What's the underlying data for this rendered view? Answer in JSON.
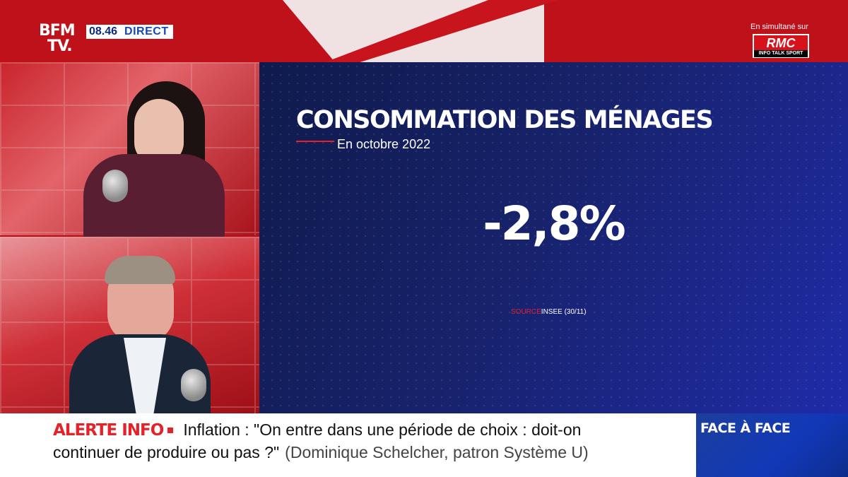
{
  "channel": {
    "logo_line1": "BFM",
    "logo_line2": "TV.",
    "time": "08.46",
    "live_label": "DIRECT"
  },
  "simulcast": {
    "label": "En simultané sur",
    "station": "RMC",
    "station_tagline": "INFO TALK SPORT"
  },
  "graphic": {
    "title": "CONSOMMATION DES MÉNAGES",
    "subtitle": "En octobre 2022",
    "value": "-2,8%",
    "source_label": "SOURCE",
    "source_text": "INSEE (30/11)"
  },
  "ticker": {
    "alert_label": "ALERTE INFO",
    "headline_line1": "Inflation : \"On entre dans une période de choix : doit-on",
    "headline_line2": "continuer de produire ou pas ?\"",
    "credit": "(Dominique Schelcher, patron Système U)"
  },
  "program": {
    "name": "FACE À FACE"
  }
}
